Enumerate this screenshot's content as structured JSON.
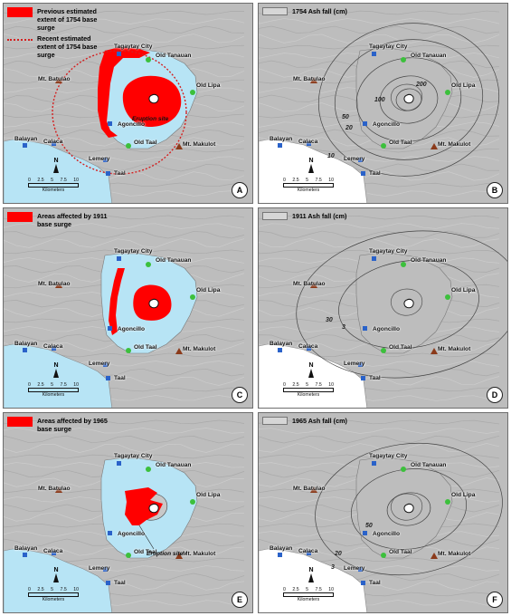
{
  "panels": [
    {
      "id": "A",
      "type": "base_surge",
      "legend": [
        {
          "kind": "fill",
          "label": "Previous estimated extent of 1754 base surge"
        },
        {
          "kind": "dash",
          "label": "Recent estimated extent of 1754 base surge"
        }
      ],
      "eruption_site_label": "Eruption site",
      "letter": "A"
    },
    {
      "id": "B",
      "type": "ashfall",
      "legend": [
        {
          "kind": "line",
          "label": "1754 Ash fall (cm)"
        }
      ],
      "contour_labels": [
        "200",
        "100",
        "50",
        "20",
        "10"
      ],
      "letter": "B"
    },
    {
      "id": "C",
      "type": "base_surge",
      "legend": [
        {
          "kind": "fill",
          "label": "Areas affected by 1911 base surge"
        }
      ],
      "letter": "C"
    },
    {
      "id": "D",
      "type": "ashfall",
      "legend": [
        {
          "kind": "line",
          "label": "1911 Ash fall (cm)"
        }
      ],
      "contour_labels": [
        "30",
        "3"
      ],
      "letter": "D"
    },
    {
      "id": "E",
      "type": "base_surge",
      "legend": [
        {
          "kind": "fill",
          "label": "Areas affected by 1965 base surge"
        }
      ],
      "eruption_site_label": "Eruption site",
      "letter": "E"
    },
    {
      "id": "F",
      "type": "ashfall",
      "legend": [
        {
          "kind": "line",
          "label": "1965 Ash fall (cm)"
        }
      ],
      "contour_labels": [
        "50",
        "20",
        "3"
      ],
      "letter": "F"
    }
  ],
  "places": {
    "tagaytay": "Tagaytay City",
    "old_tanauan": "Old Tanauan",
    "mt_batulao": "Mt. Batulao",
    "old_lipa": "Old Lipa",
    "agoncillo": "Agoncillo",
    "old_taal": "Old Taal",
    "mt_makulot": "Mt. Makulot",
    "balayan": "Balayan",
    "calaca": "Calaca",
    "lemery": "Lemery",
    "taal": "Taal"
  },
  "north_label": "N",
  "scale": {
    "ticks": [
      "0",
      "2.5",
      "5",
      "7.5",
      "10"
    ],
    "unit": "Kilometers"
  },
  "colors": {
    "surge": "#ff0000",
    "lake": "#b7e4f5",
    "sea": "#b7e4f5",
    "terrain": "#bdbdbd",
    "town_marker": "#2a62c9",
    "old_town_marker": "#3cc03c",
    "mountain_marker": "#8b3a1a",
    "ash_sea": "#ffffff"
  }
}
